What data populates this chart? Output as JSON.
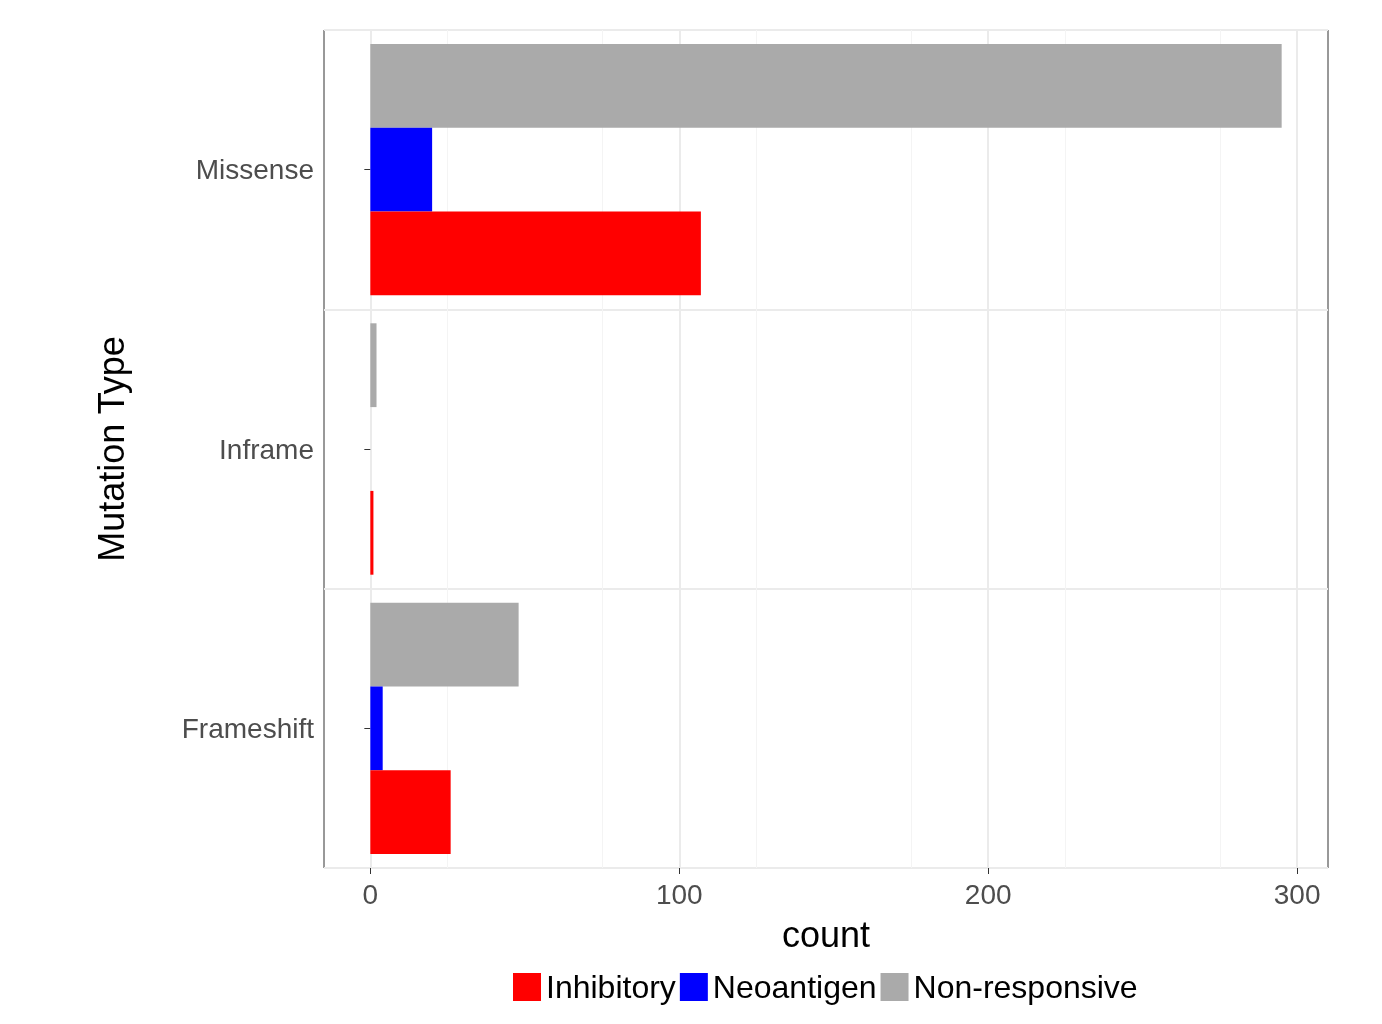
{
  "chart_data": {
    "type": "bar",
    "orientation": "horizontal",
    "xlabel": "count",
    "ylabel": "Mutation Type",
    "categories": [
      "Missense",
      "Inframe",
      "Frameshift"
    ],
    "series": [
      {
        "name": "Inhibitory",
        "color": "#ff0000",
        "values": [
          107,
          1,
          26
        ]
      },
      {
        "name": "Neoantigen",
        "color": "#0000ff",
        "values": [
          20,
          null,
          4
        ]
      },
      {
        "name": "Non-responsive",
        "color": "#aaaaaa",
        "values": [
          295,
          2,
          48
        ]
      }
    ],
    "xlim": [
      -15,
      310
    ],
    "xticks": [
      0,
      100,
      200,
      300
    ],
    "grid": true,
    "legend": "bottom"
  }
}
